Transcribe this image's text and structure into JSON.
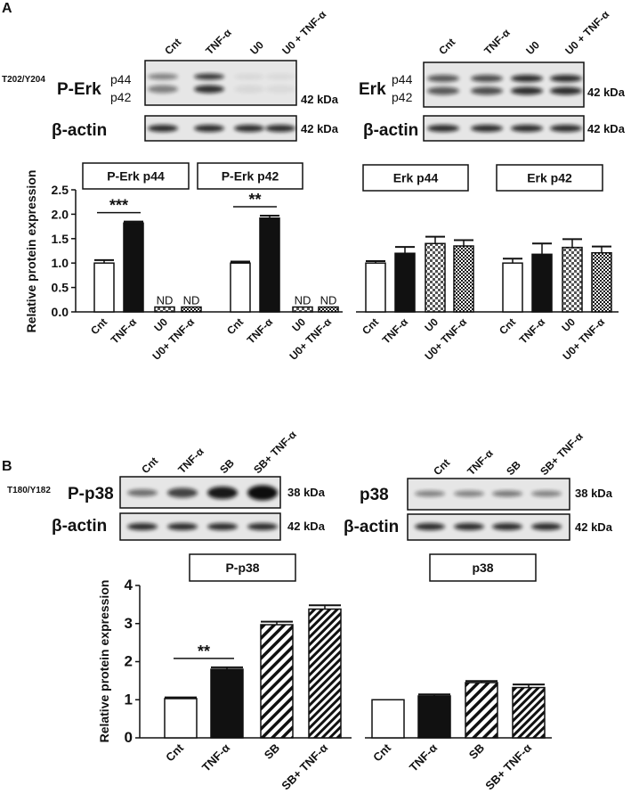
{
  "panels": [
    {
      "label": "A",
      "blots": [
        {
          "lanes": [
            "Cnt",
            "TNF-α",
            "U0",
            "U0 + TNF-α"
          ],
          "site": "T202/Y204",
          "target": "P-Erk",
          "bands": [
            "p44",
            "p42"
          ],
          "target_kda": "42 kDa",
          "control": "β-actin",
          "control_kda": "42 kDa"
        },
        {
          "lanes": [
            "Cnt",
            "TNF-α",
            "U0",
            "U0 + TNF-α"
          ],
          "target": "Erk",
          "bands": [
            "p44",
            "p42"
          ],
          "target_kda": "42 kDa",
          "control": "β-actin",
          "control_kda": "42 kDa"
        }
      ]
    },
    {
      "label": "B",
      "blots": [
        {
          "lanes": [
            "Cnt",
            "TNF-α",
            "SB",
            "SB+ TNF-α"
          ],
          "site": "T180/Y182",
          "target": "P-p38",
          "target_kda": "38 kDa",
          "control": "β-actin",
          "control_kda": "42 kDa"
        },
        {
          "lanes": [
            "Cnt",
            "TNF-α",
            "SB",
            "SB+ TNF-α"
          ],
          "target": "p38",
          "target_kda": "38 kDa",
          "control": "β-actin",
          "control_kda": "42 kDa"
        }
      ]
    }
  ],
  "chart_data": [
    {
      "type": "bar",
      "y_label": "Relative protein expression",
      "categories": [
        "Cnt",
        "TNF-α",
        "U0",
        "U0+ TNF-α"
      ],
      "fills": [
        "white",
        "black",
        "checker",
        "checker-dense"
      ],
      "ylim": [
        0,
        2.5
      ],
      "yticks": [
        {
          "value": 0,
          "label": "0.0"
        },
        0.5,
        {
          "value": 1,
          "label": "1.0"
        },
        1.5,
        {
          "value": 2,
          "label": "2.0"
        },
        2.5
      ],
      "groups": [
        {
          "title": "P-Erk p44",
          "values": [
            1.0,
            1.82,
            0.1,
            0.1
          ],
          "errors": [
            0.06,
            0.03,
            0,
            0
          ],
          "annotations": [
            {
              "text": "ND",
              "category": "U0"
            },
            {
              "text": "ND",
              "category": "U0+ TNF-α"
            }
          ],
          "significance": {
            "text": "***",
            "from": "Cnt",
            "to": "TNF-α"
          }
        },
        {
          "title": "P-Erk p42",
          "values": [
            1.0,
            1.92,
            0.1,
            0.1
          ],
          "errors": [
            0.03,
            0.05,
            0,
            0
          ],
          "annotations": [
            {
              "text": "ND",
              "category": "U0"
            },
            {
              "text": "ND",
              "category": "U0+ TNF-α"
            }
          ],
          "significance": {
            "text": "**",
            "from": "Cnt",
            "to": "TNF-α"
          }
        },
        {
          "title": "Erk p44",
          "values": [
            1.0,
            1.2,
            1.4,
            1.35
          ],
          "errors": [
            0.04,
            0.13,
            0.14,
            0.12
          ]
        },
        {
          "title": "Erk p42",
          "values": [
            1.0,
            1.18,
            1.32,
            1.21
          ],
          "errors": [
            0.09,
            0.22,
            0.17,
            0.13
          ]
        }
      ]
    },
    {
      "type": "bar",
      "y_label": "Relative protein expression",
      "categories": [
        "Cnt",
        "TNF-α",
        "SB",
        "SB+ TNF-α"
      ],
      "fills": [
        "white",
        "black",
        "hatch",
        "hatch-dense"
      ],
      "ylim": [
        0,
        4
      ],
      "yticks": [
        0,
        1,
        2,
        3,
        4
      ],
      "groups": [
        {
          "title": "P-p38",
          "values": [
            1.03,
            1.8,
            2.97,
            3.38
          ],
          "errors": [
            0.03,
            0.05,
            0.08,
            0.1
          ],
          "significance": {
            "text": "**",
            "from": "Cnt",
            "to": "TNF-α"
          }
        },
        {
          "title": "p38",
          "values": [
            1.0,
            1.1,
            1.45,
            1.32
          ],
          "errors": [
            0,
            0.04,
            0.04,
            0.08
          ]
        }
      ]
    }
  ]
}
